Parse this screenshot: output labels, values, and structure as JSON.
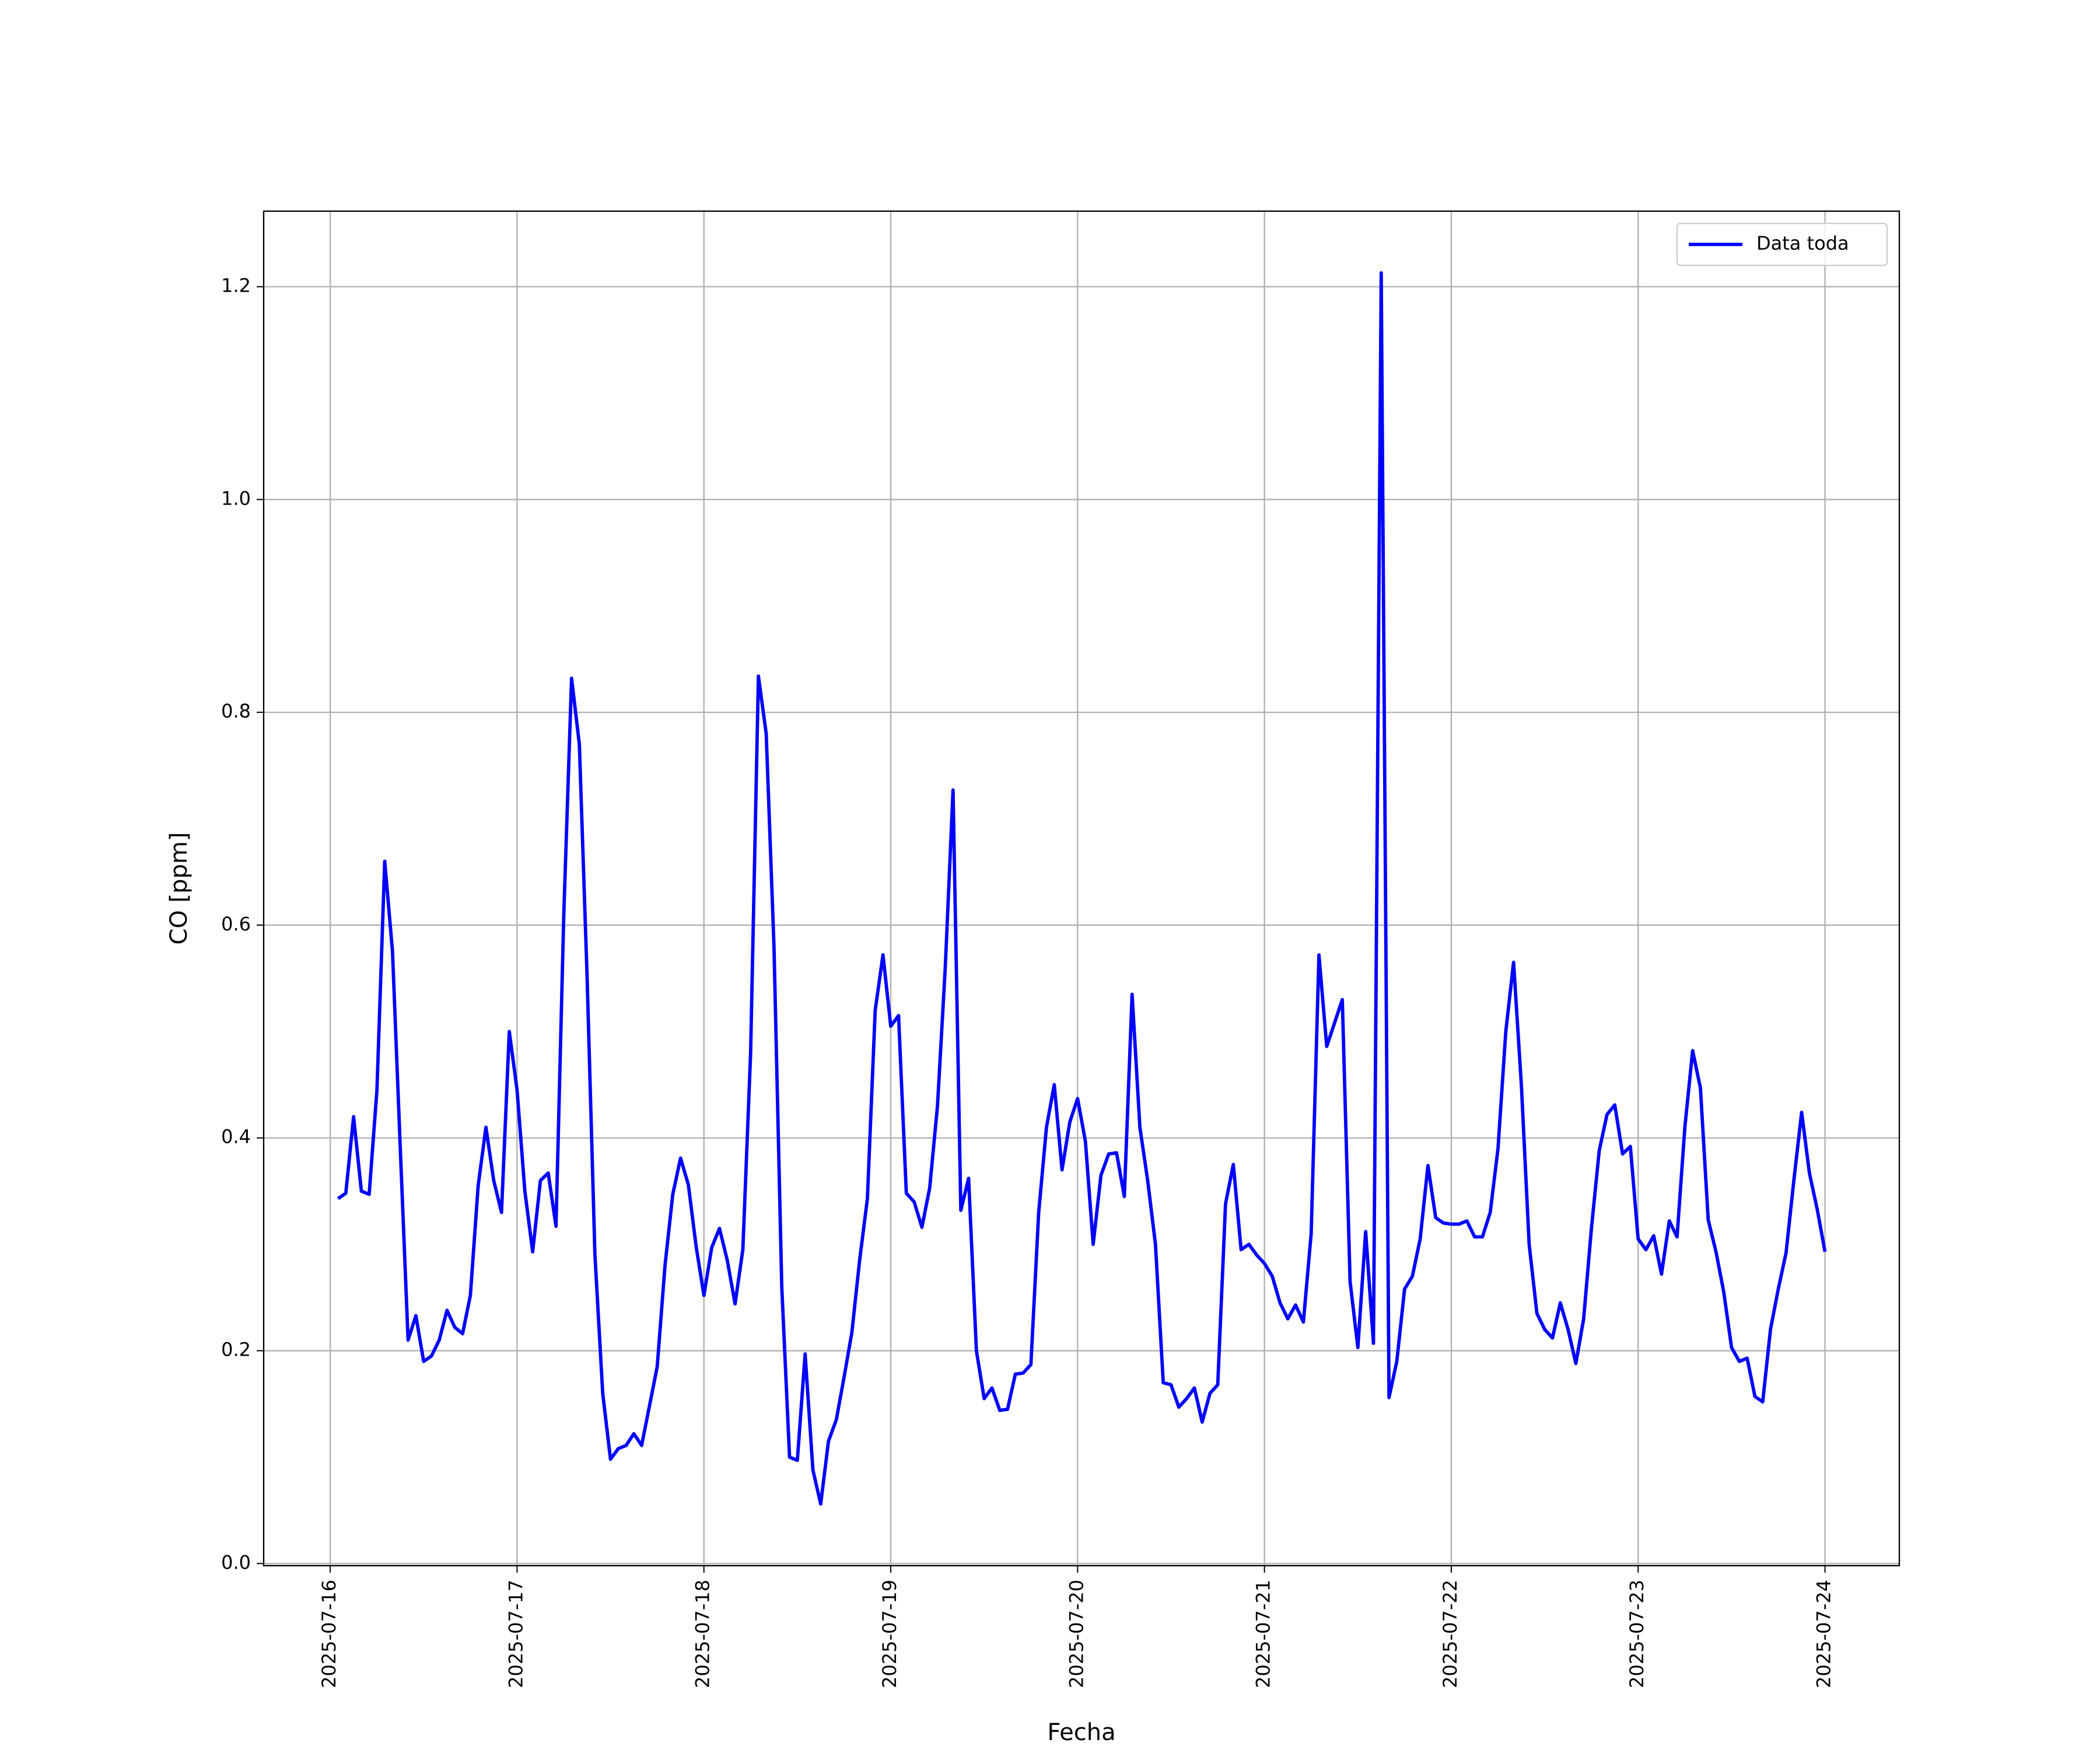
{
  "chart_data": {
    "type": "line",
    "x_label": "Fecha",
    "y_label": "CO [ppm]",
    "x": [
      "2025-07-16 01:00",
      "2025-07-16 02:00",
      "2025-07-16 03:00",
      "2025-07-16 04:00",
      "2025-07-16 05:00",
      "2025-07-16 06:00",
      "2025-07-16 07:00",
      "2025-07-16 08:00",
      "2025-07-16 09:00",
      "2025-07-16 10:00",
      "2025-07-16 11:00",
      "2025-07-16 12:00",
      "2025-07-16 13:00",
      "2025-07-16 14:00",
      "2025-07-16 15:00",
      "2025-07-16 16:00",
      "2025-07-16 17:00",
      "2025-07-16 18:00",
      "2025-07-16 19:00",
      "2025-07-16 20:00",
      "2025-07-16 21:00",
      "2025-07-16 22:00",
      "2025-07-16 23:00",
      "2025-07-17 00:00",
      "2025-07-17 01:00",
      "2025-07-17 02:00",
      "2025-07-17 03:00",
      "2025-07-17 04:00",
      "2025-07-17 05:00",
      "2025-07-17 06:00",
      "2025-07-17 07:00",
      "2025-07-17 08:00",
      "2025-07-17 09:00",
      "2025-07-17 10:00",
      "2025-07-17 11:00",
      "2025-07-17 12:00",
      "2025-07-17 13:00",
      "2025-07-17 14:00",
      "2025-07-17 15:00",
      "2025-07-17 16:00",
      "2025-07-17 17:00",
      "2025-07-17 18:00",
      "2025-07-17 19:00",
      "2025-07-17 20:00",
      "2025-07-17 21:00",
      "2025-07-17 22:00",
      "2025-07-17 23:00",
      "2025-07-18 00:00",
      "2025-07-18 01:00",
      "2025-07-18 02:00",
      "2025-07-18 03:00",
      "2025-07-18 04:00",
      "2025-07-18 05:00",
      "2025-07-18 06:00",
      "2025-07-18 07:00",
      "2025-07-18 08:00",
      "2025-07-18 09:00",
      "2025-07-18 10:00",
      "2025-07-18 11:00",
      "2025-07-18 12:00",
      "2025-07-18 13:00",
      "2025-07-18 14:00",
      "2025-07-18 15:00",
      "2025-07-18 16:00",
      "2025-07-18 17:00",
      "2025-07-18 18:00",
      "2025-07-18 19:00",
      "2025-07-18 20:00",
      "2025-07-18 21:00",
      "2025-07-18 22:00",
      "2025-07-18 23:00",
      "2025-07-19 00:00",
      "2025-07-19 01:00",
      "2025-07-19 02:00",
      "2025-07-19 03:00",
      "2025-07-19 04:00",
      "2025-07-19 05:00",
      "2025-07-19 06:00",
      "2025-07-19 07:00",
      "2025-07-19 08:00",
      "2025-07-19 09:00",
      "2025-07-19 10:00",
      "2025-07-19 11:00",
      "2025-07-19 12:00",
      "2025-07-19 13:00",
      "2025-07-19 14:00",
      "2025-07-19 15:00",
      "2025-07-19 16:00",
      "2025-07-19 17:00",
      "2025-07-19 18:00",
      "2025-07-19 19:00",
      "2025-07-19 20:00",
      "2025-07-19 21:00",
      "2025-07-19 22:00",
      "2025-07-19 23:00",
      "2025-07-20 00:00",
      "2025-07-20 01:00",
      "2025-07-20 02:00",
      "2025-07-20 03:00",
      "2025-07-20 04:00",
      "2025-07-20 05:00",
      "2025-07-20 06:00",
      "2025-07-20 07:00",
      "2025-07-20 08:00",
      "2025-07-20 09:00",
      "2025-07-20 10:00",
      "2025-07-20 11:00",
      "2025-07-20 12:00",
      "2025-07-20 13:00",
      "2025-07-20 14:00",
      "2025-07-20 15:00",
      "2025-07-20 16:00",
      "2025-07-20 17:00",
      "2025-07-20 18:00",
      "2025-07-20 19:00",
      "2025-07-20 20:00",
      "2025-07-20 21:00",
      "2025-07-20 22:00",
      "2025-07-20 23:00",
      "2025-07-21 00:00",
      "2025-07-21 01:00",
      "2025-07-21 02:00",
      "2025-07-21 03:00",
      "2025-07-21 04:00",
      "2025-07-21 05:00",
      "2025-07-21 06:00",
      "2025-07-21 07:00",
      "2025-07-21 08:00",
      "2025-07-21 09:00",
      "2025-07-21 10:00",
      "2025-07-21 11:00",
      "2025-07-21 12:00",
      "2025-07-21 13:00",
      "2025-07-21 14:00",
      "2025-07-21 15:00",
      "2025-07-21 16:00",
      "2025-07-21 17:00",
      "2025-07-21 18:00",
      "2025-07-21 19:00",
      "2025-07-21 20:00",
      "2025-07-21 21:00",
      "2025-07-21 22:00",
      "2025-07-21 23:00",
      "2025-07-22 00:00",
      "2025-07-22 01:00",
      "2025-07-22 02:00",
      "2025-07-22 03:00",
      "2025-07-22 04:00",
      "2025-07-22 05:00",
      "2025-07-22 06:00",
      "2025-07-22 07:00",
      "2025-07-22 08:00",
      "2025-07-22 09:00",
      "2025-07-22 10:00",
      "2025-07-22 11:00",
      "2025-07-22 12:00",
      "2025-07-22 13:00",
      "2025-07-22 14:00",
      "2025-07-22 15:00",
      "2025-07-22 16:00",
      "2025-07-22 17:00",
      "2025-07-22 18:00",
      "2025-07-22 19:00",
      "2025-07-22 20:00",
      "2025-07-22 21:00",
      "2025-07-22 22:00",
      "2025-07-22 23:00",
      "2025-07-23 00:00",
      "2025-07-23 01:00",
      "2025-07-23 02:00",
      "2025-07-23 03:00",
      "2025-07-23 04:00",
      "2025-07-23 05:00",
      "2025-07-23 06:00",
      "2025-07-23 07:00",
      "2025-07-23 08:00",
      "2025-07-23 09:00",
      "2025-07-23 10:00",
      "2025-07-23 11:00",
      "2025-07-23 12:00",
      "2025-07-23 13:00",
      "2025-07-23 14:00",
      "2025-07-23 15:00",
      "2025-07-23 16:00",
      "2025-07-23 17:00",
      "2025-07-23 18:00",
      "2025-07-23 19:00",
      "2025-07-23 20:00",
      "2025-07-23 21:00",
      "2025-07-23 22:00",
      "2025-07-23 23:00",
      "2025-07-24 00:00"
    ],
    "series": [
      {
        "name": "Data toda",
        "color": "#0000ff",
        "values": [
          0.343,
          0.348,
          0.42,
          0.35,
          0.347,
          0.445,
          0.66,
          0.575,
          0.39,
          0.21,
          0.233,
          0.19,
          0.195,
          0.21,
          0.238,
          0.222,
          0.216,
          0.252,
          0.355,
          0.41,
          0.36,
          0.33,
          0.5,
          0.445,
          0.35,
          0.293,
          0.36,
          0.367,
          0.317,
          0.61,
          0.832,
          0.77,
          0.55,
          0.29,
          0.16,
          0.098,
          0.108,
          0.111,
          0.122,
          0.111,
          0.148,
          0.185,
          0.28,
          0.347,
          0.381,
          0.356,
          0.298,
          0.252,
          0.297,
          0.315,
          0.285,
          0.244,
          0.295,
          0.48,
          0.834,
          0.78,
          0.58,
          0.26,
          0.1,
          0.097,
          0.197,
          0.088,
          0.056,
          0.115,
          0.135,
          0.175,
          0.217,
          0.285,
          0.343,
          0.52,
          0.572,
          0.505,
          0.515,
          0.348,
          0.34,
          0.316,
          0.353,
          0.43,
          0.56,
          0.727,
          0.332,
          0.362,
          0.2,
          0.155,
          0.165,
          0.144,
          0.145,
          0.178,
          0.179,
          0.187,
          0.33,
          0.41,
          0.45,
          0.37,
          0.415,
          0.437,
          0.397,
          0.3,
          0.365,
          0.385,
          0.386,
          0.345,
          0.535,
          0.41,
          0.36,
          0.3,
          0.17,
          0.168,
          0.147,
          0.155,
          0.165,
          0.133,
          0.16,
          0.168,
          0.338,
          0.375,
          0.295,
          0.3,
          0.29,
          0.282,
          0.27,
          0.245,
          0.23,
          0.243,
          0.227,
          0.31,
          0.572,
          0.486,
          0.508,
          0.53,
          0.265,
          0.203,
          0.312,
          0.207,
          1.213,
          0.156,
          0.19,
          0.258,
          0.27,
          0.305,
          0.374,
          0.325,
          0.32,
          0.319,
          0.319,
          0.322,
          0.307,
          0.307,
          0.33,
          0.39,
          0.5,
          0.565,
          0.45,
          0.3,
          0.235,
          0.22,
          0.212,
          0.245,
          0.22,
          0.188,
          0.23,
          0.315,
          0.388,
          0.422,
          0.431,
          0.385,
          0.392,
          0.305,
          0.295,
          0.308,
          0.272,
          0.322,
          0.307,
          0.41,
          0.482,
          0.447,
          0.323,
          0.293,
          0.255,
          0.203,
          0.19,
          0.193,
          0.157,
          0.152,
          0.22,
          0.258,
          0.292,
          0.36,
          0.424,
          0.367,
          0.333,
          0.293
        ]
      }
    ],
    "xlim": [
      "2025-07-15 15:27",
      "2025-07-24 09:33"
    ],
    "xticks": [
      "2025-07-16",
      "2025-07-17",
      "2025-07-18",
      "2025-07-19",
      "2025-07-20",
      "2025-07-21",
      "2025-07-22",
      "2025-07-23",
      "2025-07-24"
    ],
    "ylim": [
      -0.002,
      1.271
    ],
    "yticks": [
      {
        "value": 0,
        "label": "0.0"
      },
      0.2,
      0.4,
      0.6,
      0.8,
      {
        "value": 1,
        "label": "1.0"
      },
      1.2
    ],
    "grid": true,
    "legend": "upper right"
  }
}
